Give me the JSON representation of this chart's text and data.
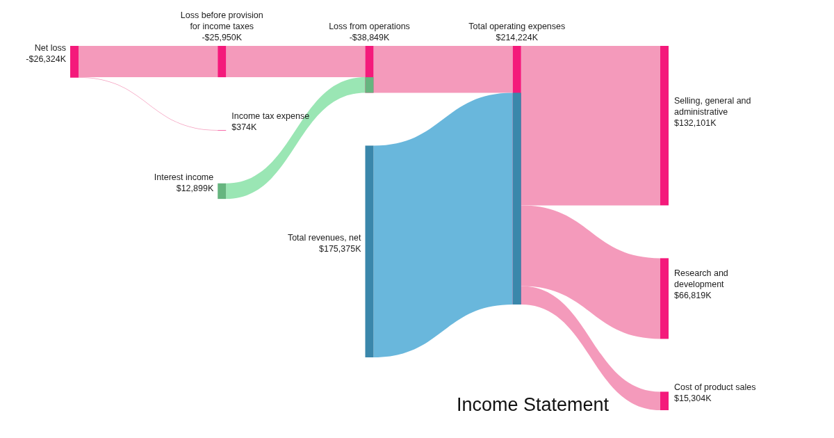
{
  "chart_data": {
    "type": "other",
    "title": "Income Statement",
    "categories": [
      "Net loss",
      "Loss before provision for income taxes",
      "Interest income",
      "Loss from operations",
      "Total revenues, net",
      "Total operating expenses",
      "Income tax expense",
      "Selling, general and administrative",
      "Research and development",
      "Cost of product sales"
    ],
    "values": [
      -26324,
      -25950,
      12899,
      -38849,
      175375,
      214224,
      374,
      132101,
      66819,
      15304
    ],
    "value_labels": [
      "-$26,324K",
      "-$25,950K",
      "$12,899K",
      "-$38,849K",
      "$175,375K",
      "$214,224K",
      "$374K",
      "$132,101K",
      "$66,819K",
      "$15,304K"
    ],
    "colors": [
      "#f41a7b",
      "#f41a7b",
      "#66b57f",
      "#f41a7b",
      "#3a87ab",
      "#f41a7b",
      "#f41a7b",
      "#f41a7b",
      "#f41a7b",
      "#f41a7b"
    ],
    "series": [
      {
        "color": "#f49abb",
        "values": [
          null,
          true,
          null,
          null,
          null,
          null,
          true,
          null,
          null,
          null
        ]
      },
      {
        "color": "#f49abb",
        "values": [
          null,
          null,
          null,
          true,
          null,
          null,
          null,
          null,
          null,
          null
        ]
      },
      {
        "color": "#9ae6b4",
        "values": [
          null,
          null,
          null,
          true,
          null,
          null,
          null,
          null,
          null,
          null
        ]
      },
      {
        "color": "#f49abb",
        "values": [
          null,
          null,
          null,
          null,
          null,
          true,
          null,
          null,
          null,
          null
        ]
      },
      {
        "color": "#69b7dc",
        "values": [
          null,
          null,
          null,
          null,
          null,
          true,
          null,
          null,
          null,
          null
        ]
      },
      {
        "color": "#f49abb",
        "values": [
          null,
          null,
          null,
          null,
          null,
          null,
          null,
          true,
          true,
          true
        ]
      }
    ]
  }
}
